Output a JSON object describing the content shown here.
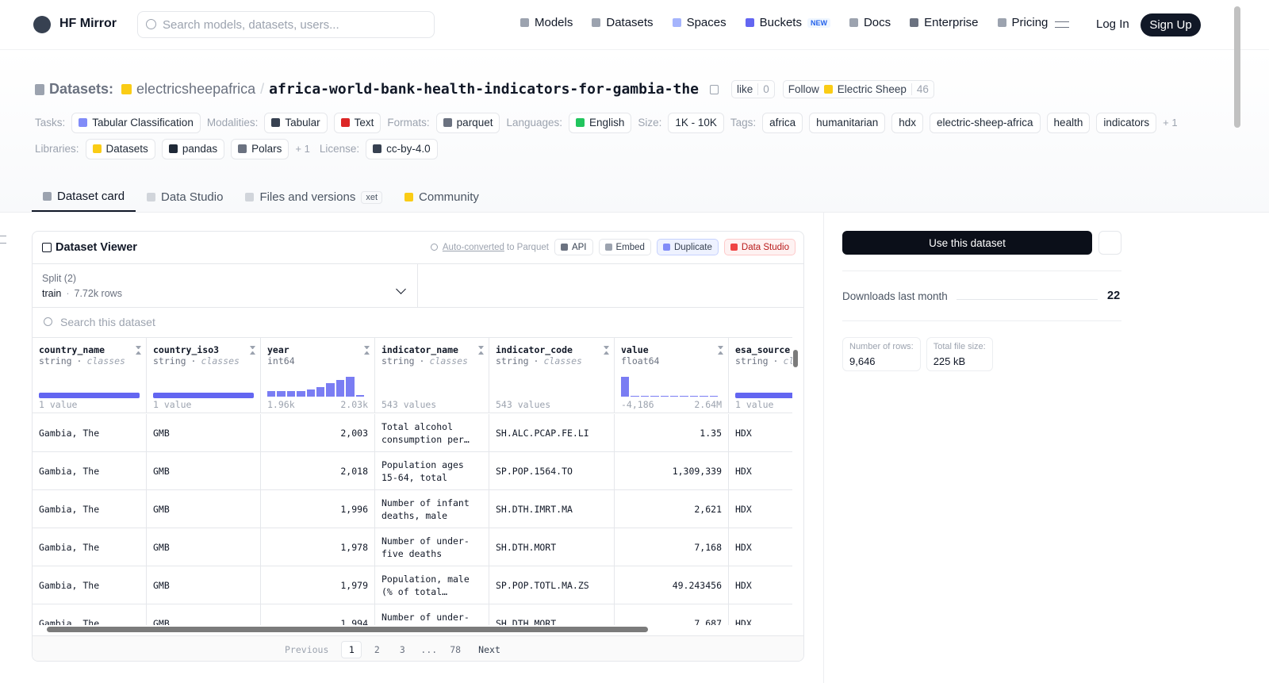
{
  "nav": {
    "brand": "HF Mirror",
    "search": "Search models, datasets, users...",
    "links": [
      {
        "label": "Models"
      },
      {
        "label": "Datasets"
      },
      {
        "label": "Spaces"
      },
      {
        "label": "Buckets",
        "badge": "NEW"
      },
      {
        "label": "Docs"
      },
      {
        "label": "Enterprise"
      },
      {
        "label": "Pricing"
      }
    ],
    "login": "Log In",
    "signup": "Sign Up"
  },
  "header": {
    "section": "Datasets:",
    "owner": "electricsheepafrica",
    "separator": "/",
    "name": "africa-world-bank-health-indicators-for-gambia-the",
    "like": "like",
    "likes": "0",
    "follow": "Follow",
    "follow_org": "Electric Sheep",
    "followers": "46"
  },
  "metadata_rows": [
    [
      {
        "label": "Tasks:",
        "items": [
          "Tabular Classification"
        ]
      },
      {
        "label": "Modalities:",
        "items": [
          "Tabular",
          "Text"
        ]
      },
      {
        "label": "Formats:",
        "items": [
          "parquet"
        ]
      },
      {
        "label": "Languages:",
        "items": [
          "English"
        ]
      },
      {
        "label": "Size:",
        "items": [
          "1K - 10K"
        ]
      },
      {
        "label": "Tags:",
        "items": [
          "africa",
          "humanitarian",
          "hdx",
          "electric-sheep-africa",
          "health",
          "indicators"
        ],
        "more": "+ 1"
      }
    ],
    [
      {
        "label": "Libraries:",
        "items": [
          "Datasets",
          "pandas",
          "Polars"
        ],
        "more": "+ 1"
      },
      {
        "label": "License:",
        "items": [
          "cc-by-4.0"
        ]
      }
    ]
  ],
  "tabs": [
    {
      "label": "Dataset card"
    },
    {
      "label": "Data Studio"
    },
    {
      "label": "Files and versions",
      "badge": "xet"
    },
    {
      "label": "Community"
    }
  ],
  "viewer": {
    "title": "Dataset Viewer",
    "auto_link": "Auto-converted",
    "auto_rest": "to Parquet",
    "buttons": [
      "API",
      "Embed",
      "Duplicate",
      "Data Studio"
    ],
    "split_label": "Split (2)",
    "split": "train",
    "sep": "·",
    "split_rows": "7.72k rows",
    "search": "Search this dataset",
    "columns": [
      {
        "name": "country_name",
        "type": "string",
        "kind": "classes",
        "stat": "1 value"
      },
      {
        "name": "country_iso3",
        "type": "string",
        "kind": "classes",
        "stat": "1 value"
      },
      {
        "name": "year",
        "type": "int64",
        "histogram": [
          3,
          3,
          3,
          3,
          3.5,
          5,
          7,
          8.5,
          10,
          1
        ],
        "min": "1.96k",
        "max": "2.03k"
      },
      {
        "name": "indicator_name",
        "type": "string",
        "kind": "classes",
        "stat": "543 values"
      },
      {
        "name": "indicator_code",
        "type": "string",
        "kind": "classes",
        "stat": "543 values"
      },
      {
        "name": "value",
        "type": "float64",
        "histogram": [
          10,
          0.3,
          0.3,
          0.3,
          0.3,
          0.3,
          0.3,
          0.3,
          0.3,
          0.3
        ],
        "min": "-4,186",
        "max": "2.64M"
      },
      {
        "name": "esa_source",
        "type": "string",
        "kind": "classes",
        "stat": "1 value"
      }
    ],
    "rows": [
      [
        "Gambia, The",
        "GMB",
        "2,003",
        "Total alcohol consumption per…",
        "SH.ALC.PCAP.FE.LI",
        "1.35",
        "HDX"
      ],
      [
        "Gambia, The",
        "GMB",
        "2,018",
        "Population ages 15-64, total",
        "SP.POP.1564.TO",
        "1,309,339",
        "HDX"
      ],
      [
        "Gambia, The",
        "GMB",
        "1,996",
        "Number of infant deaths, male",
        "SH.DTH.IMRT.MA",
        "2,621",
        "HDX"
      ],
      [
        "Gambia, The",
        "GMB",
        "1,978",
        "Number of under-five deaths",
        "SH.DTH.MORT",
        "7,168",
        "HDX"
      ],
      [
        "Gambia, The",
        "GMB",
        "1,979",
        "Population, male (% of total…",
        "SP.POP.TOTL.MA.ZS",
        "49.243456",
        "HDX"
      ],
      [
        "Gambia, The",
        "GMB",
        "1,994",
        "Number of under-five deaths",
        "SH.DTH.MORT",
        "7,687",
        "HDX"
      ]
    ],
    "pagination": {
      "previous": "Previous",
      "pages": [
        "1",
        "2",
        "3",
        "...",
        "78"
      ],
      "next": "Next"
    }
  },
  "sidebar": {
    "use": "Use this dataset",
    "downloads_label": "Downloads last month",
    "downloads": "22",
    "stats": [
      {
        "label": "Number of rows:",
        "value": "9,646"
      },
      {
        "label": "Total file size:",
        "value": "225 kB"
      }
    ]
  }
}
